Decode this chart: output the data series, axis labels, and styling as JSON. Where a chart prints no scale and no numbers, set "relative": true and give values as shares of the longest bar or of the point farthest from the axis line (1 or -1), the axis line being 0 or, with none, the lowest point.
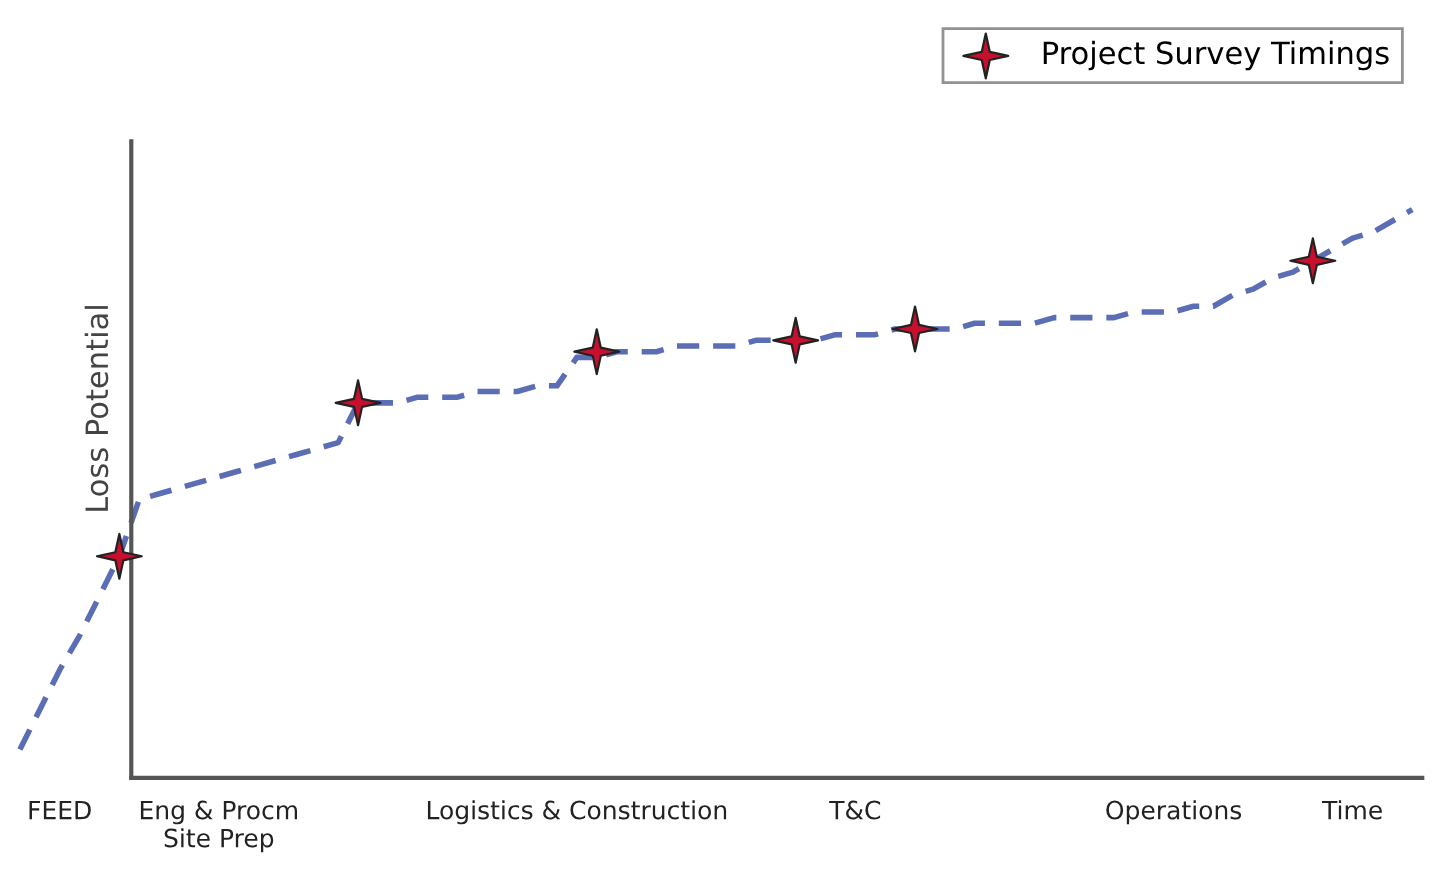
{
  "chart_data": {
    "type": "line",
    "relative": true,
    "ylabel": "Loss Potential",
    "grid": false,
    "legend": "top right",
    "categories": [
      null,
      null,
      "FEED",
      null,
      null,
      null,
      null,
      null,
      null,
      null,
      "Eng & Procm\nSite Prep",
      null,
      null,
      null,
      null,
      null,
      null,
      null,
      null,
      null,
      null,
      null,
      null,
      null,
      null,
      null,
      null,
      null,
      "Logistics & Construction",
      null,
      null,
      null,
      null,
      null,
      null,
      null,
      null,
      null,
      null,
      null,
      null,
      null,
      "T&C",
      null,
      null,
      null,
      null,
      null,
      null,
      null,
      null,
      null,
      null,
      null,
      null,
      null,
      null,
      null,
      "Operations",
      null,
      null,
      null,
      null,
      null,
      null,
      null,
      null,
      "Time",
      null,
      null,
      null
    ],
    "series": [
      {
        "color": "#5b6db5",
        "line_style": "dashed",
        "marker": "none",
        "values": [
          0.05,
          0.12,
          0.19,
          0.25,
          0.32,
          0.39,
          0.49,
          0.5,
          0.51,
          0.52,
          0.53,
          0.54,
          0.55,
          0.56,
          0.57,
          0.58,
          0.59,
          0.66,
          0.66,
          0.66,
          0.67,
          0.67,
          0.67,
          0.68,
          0.68,
          0.68,
          0.69,
          0.69,
          0.74,
          0.74,
          0.75,
          0.75,
          0.75,
          0.76,
          0.76,
          0.76,
          0.76,
          0.77,
          0.77,
          0.77,
          0.77,
          0.78,
          0.78,
          0.78,
          0.79,
          0.79,
          0.79,
          0.79,
          0.8,
          0.8,
          0.8,
          0.8,
          0.81,
          0.81,
          0.81,
          0.81,
          0.82,
          0.82,
          0.82,
          0.83,
          0.83,
          0.85,
          0.86,
          0.88,
          0.89,
          0.91,
          0.93,
          0.95,
          0.96,
          0.98,
          1.0
        ]
      },
      {
        "type": "scatter",
        "name": "Project Survey Timings",
        "color": "#c8102e",
        "marker": "star",
        "values": [
          null,
          null,
          null,
          null,
          null,
          0.39,
          null,
          null,
          null,
          null,
          null,
          null,
          null,
          null,
          null,
          null,
          null,
          0.66,
          null,
          null,
          null,
          null,
          null,
          null,
          null,
          null,
          null,
          null,
          null,
          0.75,
          null,
          null,
          null,
          null,
          null,
          null,
          null,
          null,
          null,
          0.77,
          null,
          null,
          null,
          null,
          null,
          0.79,
          null,
          null,
          null,
          null,
          null,
          null,
          null,
          null,
          null,
          null,
          null,
          null,
          null,
          null,
          null,
          null,
          null,
          null,
          null,
          0.91,
          null,
          null,
          null,
          null,
          null
        ]
      }
    ]
  }
}
